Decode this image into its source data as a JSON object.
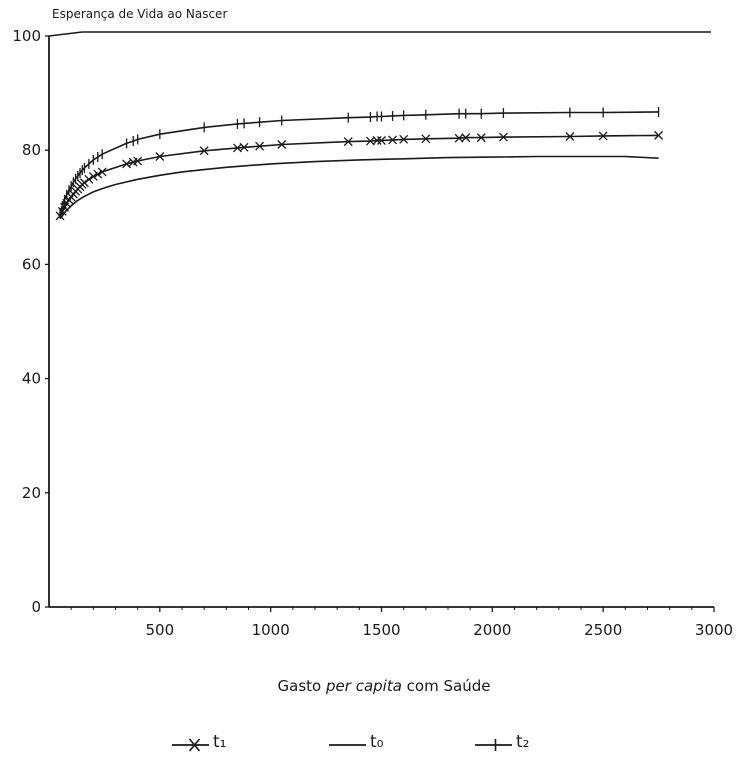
{
  "chart_data": {
    "type": "line",
    "title": "",
    "ylabel": "Esperança de Vida ao Nascer",
    "xlabel_parts": [
      "Gasto ",
      "per capita",
      " com Saúde"
    ],
    "xlim": [
      0,
      3000
    ],
    "ylim": [
      0,
      100
    ],
    "x_ticks": [
      500,
      1000,
      1500,
      2000,
      2500,
      3000
    ],
    "x_tick_labels": [
      "500",
      "1000",
      "1500",
      "2000",
      "2500",
      "3000"
    ],
    "y_ticks": [
      0,
      20,
      40,
      60,
      80,
      100
    ],
    "y_tick_labels": [
      "0",
      "20",
      "40",
      "60",
      "80",
      "100"
    ],
    "grid": false,
    "legend_position": "bottom",
    "legend_labels": [
      "t₁",
      "t₀",
      "t₂"
    ],
    "series": [
      {
        "name": "t1",
        "marker": "x",
        "x": [
          50,
          60,
          70,
          80,
          90,
          100,
          110,
          120,
          130,
          140,
          150,
          160,
          180,
          200,
          220,
          240,
          350,
          380,
          400,
          500,
          700,
          850,
          880,
          950,
          1050,
          1350,
          1450,
          1480,
          1500,
          1550,
          1600,
          1700,
          1850,
          1880,
          1950,
          2050,
          2350,
          2500,
          2750
        ],
        "y": [
          68.5,
          69.3,
          70.0,
          70.7,
          71.3,
          71.8,
          72.3,
          72.8,
          73.2,
          73.6,
          74.0,
          74.3,
          74.9,
          75.4,
          75.8,
          76.2,
          77.6,
          77.9,
          78.1,
          78.9,
          79.9,
          80.4,
          80.5,
          80.7,
          81.0,
          81.5,
          81.6,
          81.7,
          81.7,
          81.8,
          81.9,
          82.0,
          82.1,
          82.2,
          82.2,
          82.3,
          82.4,
          82.5,
          82.6
        ]
      },
      {
        "name": "t0",
        "marker": "none",
        "x": [
          50,
          60,
          75,
          90,
          110,
          130,
          150,
          175,
          200,
          250,
          300,
          400,
          500,
          600,
          700,
          800,
          900,
          1000,
          1200,
          1400,
          1600,
          1800,
          2000,
          2200,
          2400,
          2600,
          2750
        ],
        "y": [
          68.0,
          68.5,
          69.3,
          69.9,
          70.6,
          71.2,
          71.7,
          72.2,
          72.7,
          73.4,
          74.0,
          74.9,
          75.6,
          76.2,
          76.6,
          77.0,
          77.3,
          77.6,
          78.0,
          78.3,
          78.5,
          78.7,
          78.8,
          78.9,
          78.9,
          78.9,
          78.6
        ]
      },
      {
        "name": "t2",
        "marker": "+",
        "x": [
          50,
          60,
          70,
          80,
          90,
          100,
          110,
          120,
          130,
          140,
          150,
          160,
          180,
          200,
          220,
          240,
          350,
          380,
          400,
          500,
          700,
          850,
          880,
          950,
          1050,
          1350,
          1450,
          1480,
          1500,
          1550,
          1600,
          1700,
          1850,
          1880,
          1950,
          2050,
          2350,
          2500,
          2750
        ],
        "y": [
          69.0,
          70.2,
          71.3,
          72.2,
          73.0,
          73.7,
          74.4,
          75.0,
          75.5,
          76.0,
          76.5,
          76.9,
          77.6,
          78.3,
          78.8,
          79.3,
          81.2,
          81.6,
          81.9,
          82.8,
          84.0,
          84.6,
          84.7,
          84.9,
          85.2,
          85.7,
          85.8,
          85.9,
          85.9,
          86.0,
          86.1,
          86.2,
          86.4,
          86.4,
          86.4,
          86.5,
          86.6,
          86.6,
          86.7
        ]
      }
    ]
  }
}
